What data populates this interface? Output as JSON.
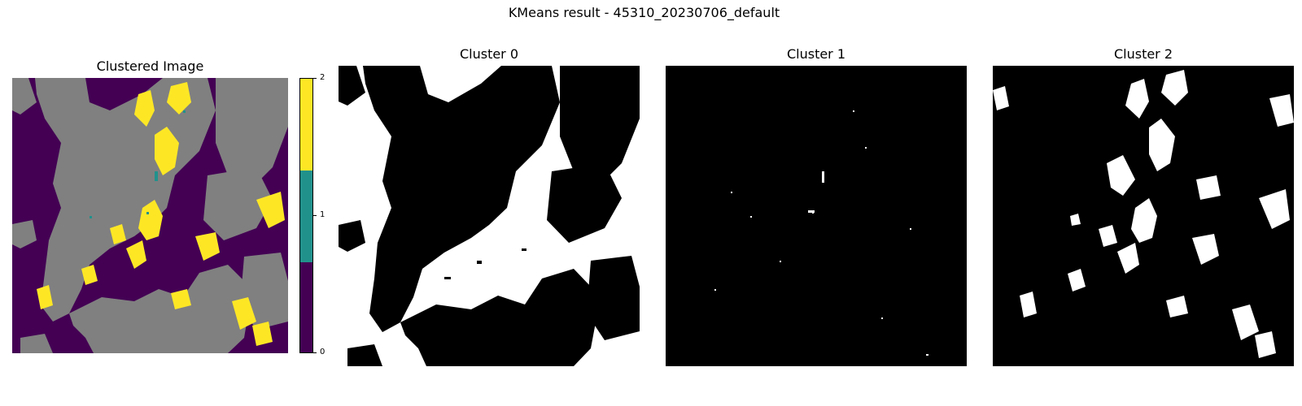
{
  "figure": {
    "suptitle": "KMeans result - 45310_20230706_default"
  },
  "colors": {
    "cluster_0": "#440154",
    "cluster_1": "#21918c",
    "cluster_2": "#fde725",
    "cloud_mask": "#808080",
    "mask_on": "#ffffff",
    "mask_off": "#000000"
  },
  "chart_data": [
    {
      "type": "heatmap",
      "title": "Clustered Image",
      "colormap": "viridis",
      "categories": [
        0,
        1,
        2
      ],
      "colorbar": {
        "ticks": [
          "0",
          "1",
          "2"
        ],
        "range": [
          0,
          2
        ]
      },
      "axes": "off"
    },
    {
      "type": "heatmap",
      "title": "Cluster 0",
      "colormap": "binary",
      "values": [
        0,
        1
      ],
      "axes": "off"
    },
    {
      "type": "heatmap",
      "title": "Cluster 1",
      "colormap": "binary",
      "values": [
        0,
        1
      ],
      "axes": "off"
    },
    {
      "type": "heatmap",
      "title": "Cluster 2",
      "colormap": "binary",
      "values": [
        0,
        1
      ],
      "axes": "off"
    }
  ]
}
